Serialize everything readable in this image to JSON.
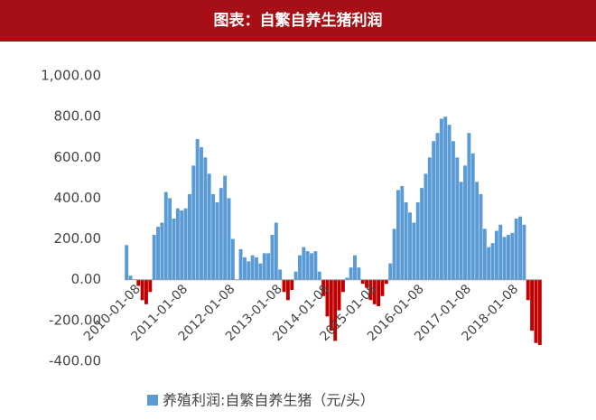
{
  "chart_data": {
    "type": "bar",
    "title": "图表：自繁自养生猪利润",
    "series_name": "养殖利润:自繁自养生猪（元/头）",
    "color": "#5b9bd5",
    "negative_color": "#c00000",
    "ylim": [
      -400,
      1000
    ],
    "yticks": [
      {
        "value": -400,
        "label": "-400.00"
      },
      {
        "value": -200,
        "label": "-200.00"
      },
      {
        "value": 0,
        "label": "0.00"
      },
      {
        "value": 200,
        "label": "200.00"
      },
      {
        "value": 400,
        "label": "400.00"
      },
      {
        "value": 600,
        "label": "600.00"
      },
      {
        "value": 800,
        "label": "800.00"
      },
      {
        "value": 1000,
        "label": "1,000.00"
      }
    ],
    "categories": [
      null,
      null,
      null,
      "2010-01-08",
      null,
      null,
      null,
      null,
      null,
      null,
      null,
      null,
      null,
      null,
      null,
      "2011-01-08",
      null,
      null,
      null,
      null,
      null,
      null,
      null,
      null,
      null,
      null,
      null,
      "2012-01-08",
      null,
      null,
      null,
      null,
      null,
      null,
      null,
      null,
      null,
      null,
      null,
      "2013-01-08",
      null,
      null,
      null,
      null,
      null,
      null,
      null,
      null,
      null,
      null,
      null,
      "2014-01-08",
      null,
      null,
      null,
      null,
      null,
      null,
      null,
      null,
      null,
      null,
      null,
      "2015-01-08",
      null,
      null,
      null,
      null,
      null,
      null,
      null,
      null,
      null,
      null,
      null,
      "2016-01-08",
      null,
      null,
      null,
      null,
      null,
      null,
      null,
      null,
      null,
      null,
      null,
      "2017-01-08",
      null,
      null,
      null,
      null,
      null,
      null,
      null,
      null,
      null,
      null,
      null,
      "2018-01-08",
      null,
      null,
      null,
      null,
      null,
      null
    ],
    "values": [
      170,
      20,
      0,
      -30,
      -100,
      -120,
      -60,
      220,
      260,
      280,
      430,
      400,
      300,
      350,
      340,
      350,
      420,
      560,
      690,
      650,
      600,
      520,
      420,
      380,
      450,
      510,
      400,
      200,
      0,
      150,
      110,
      90,
      120,
      110,
      80,
      130,
      130,
      220,
      280,
      50,
      -60,
      -100,
      -50,
      40,
      120,
      160,
      140,
      130,
      140,
      40,
      -80,
      -180,
      -250,
      -300,
      -150,
      -60,
      10,
      60,
      120,
      60,
      -20,
      -40,
      -100,
      -120,
      -130,
      -80,
      -20,
      80,
      250,
      440,
      460,
      380,
      330,
      280,
      380,
      450,
      520,
      600,
      680,
      720,
      790,
      800,
      760,
      680,
      600,
      480,
      560,
      720,
      620,
      480,
      420,
      250,
      160,
      180,
      240,
      270,
      210,
      220,
      230,
      300,
      310,
      270,
      -100,
      -250,
      -310,
      -320
    ]
  }
}
